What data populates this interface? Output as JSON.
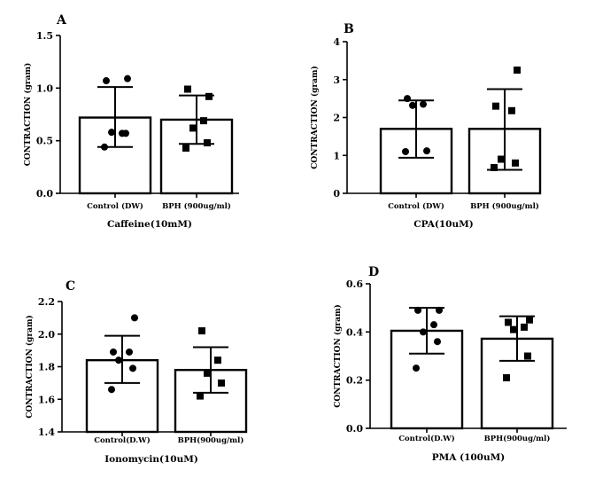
{
  "chart_data": [
    {
      "type": "bar",
      "panel_label": "A",
      "categories": [
        "Control (DW)",
        "BPH (900ug/ml)"
      ],
      "values": [
        0.72,
        0.7
      ],
      "error_low": [
        0.44,
        0.47
      ],
      "error_high": [
        1.01,
        0.93
      ],
      "points": [
        [
          0.44,
          0.57,
          0.58,
          0.57,
          1.07,
          1.09
        ],
        [
          0.43,
          0.48,
          0.62,
          0.69,
          0.99,
          0.92
        ]
      ],
      "markers": [
        "circle",
        "square"
      ],
      "ylabel": "CONTRACTION (gram)",
      "xlabel": "Caffeine(10mM)",
      "ylim": [
        0,
        1.5
      ],
      "ticks": [
        0.0,
        0.5,
        1.0,
        1.5
      ],
      "tick_labels": [
        "0.0",
        "0.5",
        "1.0",
        "1.5"
      ]
    },
    {
      "type": "bar",
      "panel_label": "B",
      "categories": [
        "Control (DW)",
        "BPH (900ug/ml)"
      ],
      "values": [
        1.7,
        1.7
      ],
      "error_low": [
        0.94,
        0.62
      ],
      "error_high": [
        2.45,
        2.75
      ],
      "points": [
        [
          1.1,
          1.12,
          2.32,
          2.35,
          2.5
        ],
        [
          0.68,
          0.8,
          0.9,
          2.18,
          2.3,
          3.25
        ]
      ],
      "markers": [
        "circle",
        "square"
      ],
      "ylabel": "CONTRACTION (gram)",
      "xlabel": "CPA(10uM)",
      "ylim": [
        0,
        4
      ],
      "ticks": [
        0,
        1,
        2,
        3,
        4
      ],
      "tick_labels": [
        "0",
        "1",
        "2",
        "3",
        "4"
      ]
    },
    {
      "type": "bar",
      "panel_label": "C",
      "categories": [
        "Control(D.W)",
        "BPH(900ug/ml)"
      ],
      "values": [
        1.84,
        1.78
      ],
      "error_low": [
        1.7,
        1.64
      ],
      "error_high": [
        1.99,
        1.92
      ],
      "points": [
        [
          1.66,
          1.79,
          1.84,
          1.89,
          1.89,
          2.1
        ],
        [
          1.62,
          1.7,
          1.76,
          1.84,
          2.02
        ]
      ],
      "markers": [
        "circle",
        "square"
      ],
      "ylabel": "CONTRACTION (gram)",
      "xlabel": "Ionomycin(10uM)",
      "ylim": [
        1.4,
        2.2
      ],
      "ticks": [
        1.4,
        1.6,
        1.8,
        2.0,
        2.2
      ],
      "tick_labels": [
        "1.4",
        "1.6",
        "1.8",
        "2.0",
        "2.2"
      ]
    },
    {
      "type": "bar",
      "panel_label": "D",
      "categories": [
        "Control(D.W)",
        "BPH(900ug/ml)"
      ],
      "values": [
        0.405,
        0.372
      ],
      "error_low": [
        0.31,
        0.28
      ],
      "error_high": [
        0.5,
        0.465
      ],
      "points": [
        [
          0.25,
          0.36,
          0.4,
          0.43,
          0.49,
          0.49
        ],
        [
          0.21,
          0.3,
          0.41,
          0.42,
          0.44,
          0.45
        ]
      ],
      "markers": [
        "circle",
        "square"
      ],
      "ylabel": "CONTRACTION (gram)",
      "xlabel": "PMA (100uM)",
      "ylim": [
        0,
        0.6
      ],
      "ticks": [
        0.0,
        0.2,
        0.4,
        0.6
      ],
      "tick_labels": [
        "0.0",
        "0.2",
        "0.4",
        "0.6"
      ]
    }
  ]
}
